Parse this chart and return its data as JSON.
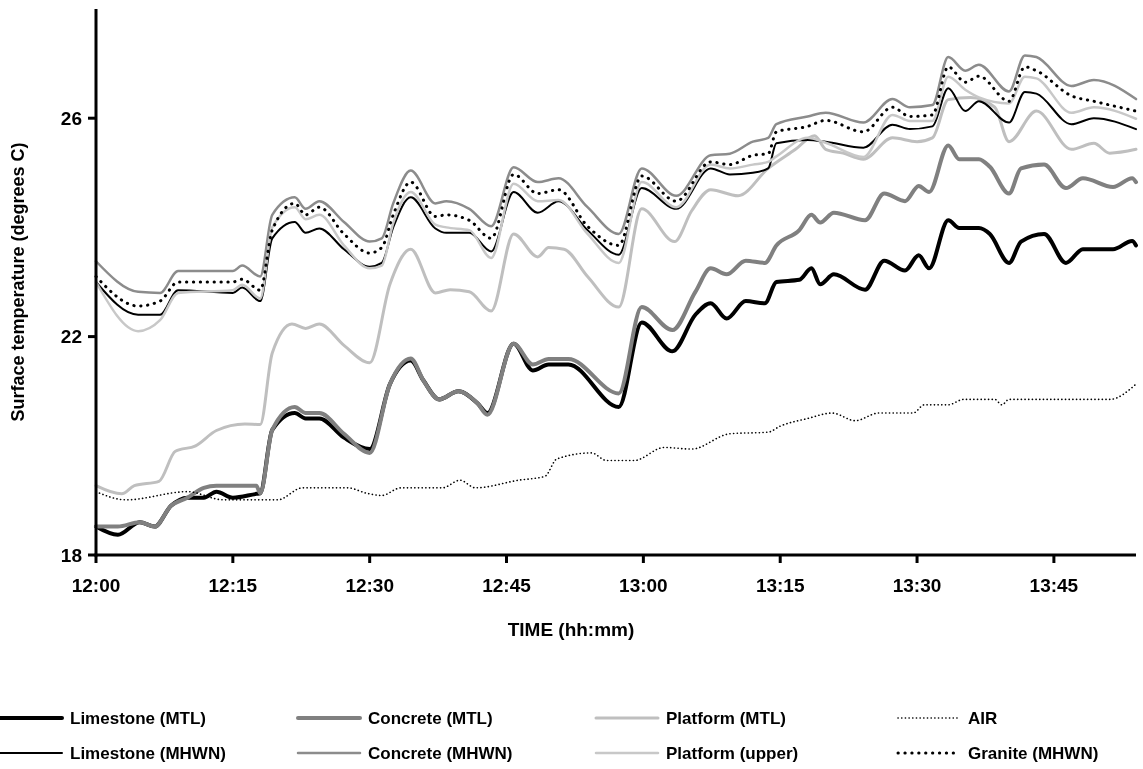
{
  "chart_data": {
    "type": "line",
    "xlabel": "TIME (hh:mm)",
    "ylabel": "Surface temperature (degrees C)",
    "xlim": [
      12,
      13.9
    ],
    "ylim": [
      18,
      28
    ],
    "xticks": [
      {
        "value": 12,
        "label": "12:00"
      },
      {
        "value": 12.25,
        "label": "12:15"
      },
      {
        "value": 12.5,
        "label": "12:30"
      },
      {
        "value": 12.75,
        "label": "12:45"
      },
      {
        "value": 13,
        "label": "13:00"
      },
      {
        "value": 13.25,
        "label": "13:15"
      },
      {
        "value": 13.5,
        "label": "13:30"
      },
      {
        "value": 13.75,
        "label": "13:45"
      }
    ],
    "yticks": [
      18,
      22,
      26
    ],
    "grid": false,
    "legend": "bottom",
    "marker": "none",
    "x": [
      12,
      12.077,
      12.117,
      12.15,
      12.25,
      12.267,
      12.3,
      12.322,
      12.363,
      12.383,
      12.408,
      12.453,
      12.5,
      12.522,
      12.543,
      12.575,
      12.62,
      12.64,
      12.682,
      12.722,
      12.763,
      12.807,
      12.845,
      12.898,
      12.955,
      12.997,
      13.06,
      13.123,
      13.158,
      13.2,
      13.228,
      13.243,
      13.3,
      13.333,
      13.402,
      13.455,
      13.487,
      13.528,
      13.557,
      13.588,
      13.613,
      13.668,
      13.697,
      13.718,
      13.782,
      13.823,
      13.9
    ],
    "series": [
      {
        "name": "Limestone (MTL)",
        "color": "#000000",
        "line_style": "solid",
        "x": [
          12,
          12.04,
          12.08,
          12.107,
          12.137,
          12.167,
          12.197,
          12.22,
          12.25,
          12.293,
          12.3,
          12.322,
          12.363,
          12.383,
          12.408,
          12.453,
          12.5,
          12.537,
          12.575,
          12.598,
          12.627,
          12.662,
          12.697,
          12.715,
          12.763,
          12.798,
          12.827,
          12.863,
          12.955,
          12.997,
          13.053,
          13.095,
          13.123,
          13.152,
          13.187,
          13.222,
          13.243,
          13.285,
          13.307,
          13.323,
          13.348,
          13.405,
          13.44,
          13.478,
          13.503,
          13.522,
          13.557,
          13.577,
          13.613,
          13.633,
          13.668,
          13.69,
          13.732,
          13.772,
          13.803,
          13.858,
          13.893,
          13.9
        ],
        "values": [
          18.52,
          18.37,
          18.6,
          18.52,
          18.9,
          19.05,
          19.05,
          19.16,
          19.05,
          19.12,
          19.13,
          20.29,
          20.6,
          20.5,
          20.5,
          20.15,
          19.94,
          21.13,
          21.56,
          21.2,
          20.85,
          21.0,
          20.78,
          20.6,
          21.87,
          21.38,
          21.49,
          21.49,
          20.71,
          22.26,
          21.73,
          22.4,
          22.61,
          22.33,
          22.65,
          22.61,
          23.0,
          23.04,
          23.25,
          22.96,
          23.14,
          22.86,
          23.39,
          23.21,
          23.49,
          23.25,
          24.13,
          23.99,
          23.99,
          23.88,
          23.35,
          23.74,
          23.88,
          23.35,
          23.6,
          23.6,
          23.75,
          23.67
        ]
      },
      {
        "name": "Concrete (MTL)",
        "color": "#808080",
        "line_style": "solid",
        "x": [
          12,
          12.04,
          12.08,
          12.107,
          12.137,
          12.167,
          12.197,
          12.22,
          12.25,
          12.293,
          12.3,
          12.322,
          12.363,
          12.383,
          12.408,
          12.453,
          12.5,
          12.537,
          12.575,
          12.598,
          12.627,
          12.662,
          12.697,
          12.715,
          12.763,
          12.798,
          12.827,
          12.863,
          12.955,
          12.997,
          13.053,
          13.095,
          13.123,
          13.152,
          13.187,
          13.222,
          13.243,
          13.285,
          13.307,
          13.323,
          13.348,
          13.405,
          13.44,
          13.478,
          13.503,
          13.522,
          13.557,
          13.577,
          13.613,
          13.633,
          13.668,
          13.69,
          13.732,
          13.772,
          13.803,
          13.858,
          13.893,
          13.9
        ],
        "values": [
          18.52,
          18.52,
          18.6,
          18.52,
          18.9,
          19.05,
          19.23,
          19.27,
          19.27,
          19.27,
          19.13,
          20.29,
          20.71,
          20.6,
          20.6,
          20.22,
          19.87,
          21.13,
          21.6,
          21.2,
          20.85,
          21.0,
          20.78,
          20.57,
          21.87,
          21.49,
          21.59,
          21.59,
          20.96,
          22.54,
          22.12,
          22.82,
          23.25,
          23.14,
          23.39,
          23.35,
          23.67,
          23.95,
          24.23,
          24.09,
          24.27,
          24.13,
          24.62,
          24.48,
          24.76,
          24.65,
          25.5,
          25.25,
          25.25,
          25.11,
          24.62,
          25.08,
          25.15,
          24.72,
          24.9,
          24.74,
          24.9,
          24.83
        ]
      },
      {
        "name": "Platform (MTL)",
        "color": "#bfbfbf",
        "line_style": "solid",
        "x": [
          12,
          12.047,
          12.07,
          12.115,
          12.145,
          12.182,
          12.22,
          12.272,
          12.3,
          12.322,
          12.358,
          12.383,
          12.408,
          12.453,
          12.5,
          12.537,
          12.575,
          12.62,
          12.647,
          12.682,
          12.722,
          12.763,
          12.807,
          12.827,
          12.855,
          12.898,
          12.955,
          12.997,
          13.057,
          13.088,
          13.123,
          13.173,
          13.228,
          13.278,
          13.313,
          13.333,
          13.365,
          13.402,
          13.455,
          13.5,
          13.528,
          13.557,
          13.598,
          13.642,
          13.668,
          13.718,
          13.782,
          13.823,
          13.852,
          13.9
        ],
        "values": [
          19.27,
          19.12,
          19.27,
          19.35,
          19.9,
          20.0,
          20.28,
          20.4,
          20.39,
          21.7,
          22.23,
          22.15,
          22.23,
          21.84,
          21.52,
          22.96,
          23.6,
          22.8,
          22.86,
          22.82,
          22.47,
          23.88,
          23.46,
          23.63,
          23.6,
          23.1,
          22.54,
          24.34,
          23.74,
          24.3,
          24.69,
          24.58,
          25.08,
          25.43,
          25.68,
          25.43,
          25.36,
          25.25,
          25.64,
          25.57,
          25.64,
          26.34,
          26.38,
          26.2,
          25.57,
          26.13,
          25.43,
          25.54,
          25.36,
          25.43
        ]
      },
      {
        "name": "AIR",
        "color": "#000000",
        "line_style": "dotted",
        "x": [
          12,
          12.055,
          12.167,
          12.233,
          12.332,
          12.377,
          12.46,
          12.495,
          12.522,
          12.557,
          12.633,
          12.665,
          12.693,
          12.772,
          12.82,
          12.842,
          12.905,
          12.933,
          12.983,
          13.038,
          13.088,
          13.158,
          13.228,
          13.25,
          13.3,
          13.345,
          13.387,
          13.43,
          13.493,
          13.513,
          13.557,
          13.585,
          13.642,
          13.655,
          13.668,
          13.852,
          13.9
        ],
        "values": [
          19.16,
          19.01,
          19.16,
          19.01,
          19.01,
          19.23,
          19.23,
          19.13,
          19.09,
          19.23,
          19.23,
          19.37,
          19.23,
          19.37,
          19.44,
          19.76,
          19.87,
          19.73,
          19.73,
          19.97,
          19.94,
          20.22,
          20.25,
          20.36,
          20.5,
          20.6,
          20.46,
          20.6,
          20.6,
          20.75,
          20.75,
          20.85,
          20.85,
          20.75,
          20.85,
          20.85,
          21.13
        ]
      },
      {
        "name": "Limestone (MHWN)",
        "color": "#000000",
        "line_style": "solid",
        "values": [
          23.0,
          22.4,
          22.4,
          22.85,
          22.8,
          22.9,
          22.65,
          23.8,
          24.1,
          23.9,
          23.98,
          23.6,
          23.28,
          23.35,
          24.0,
          24.55,
          23.98,
          23.9,
          23.9,
          23.56,
          24.65,
          24.27,
          24.48,
          23.95,
          23.5,
          24.72,
          24.34,
          25.08,
          24.97,
          25.0,
          25.08,
          25.54,
          25.6,
          25.57,
          25.46,
          25.88,
          25.8,
          25.85,
          26.55,
          26.13,
          26.31,
          25.92,
          26.48,
          26.45,
          25.89,
          26.0,
          25.8
        ]
      },
      {
        "name": "Concrete (MHWN)",
        "color": "#8c8c8c",
        "line_style": "solid",
        "values": [
          23.38,
          22.82,
          22.8,
          23.2,
          23.2,
          23.3,
          23.1,
          24.23,
          24.55,
          24.34,
          24.48,
          24.1,
          23.74,
          23.8,
          24.44,
          25.04,
          24.44,
          24.48,
          24.34,
          24.02,
          25.1,
          24.83,
          24.9,
          24.37,
          23.88,
          25.08,
          24.58,
          25.32,
          25.35,
          25.57,
          25.64,
          25.89,
          26.03,
          26.1,
          25.92,
          26.35,
          26.2,
          26.24,
          27.12,
          26.87,
          26.98,
          26.49,
          27.15,
          27.12,
          26.59,
          26.7,
          26.35
        ]
      },
      {
        "name": "Platform (upper)",
        "color": "#c8c8c8",
        "line_style": "solid",
        "values": [
          23.0,
          22.1,
          22.3,
          22.8,
          22.85,
          22.95,
          22.7,
          24.0,
          24.37,
          24.15,
          24.23,
          23.67,
          23.25,
          23.3,
          24.08,
          24.65,
          24.05,
          24.0,
          23.95,
          23.44,
          24.8,
          24.48,
          24.5,
          23.88,
          23.35,
          24.83,
          24.37,
          25.15,
          25.08,
          25.15,
          25.2,
          25.3,
          25.64,
          25.55,
          25.29,
          26.06,
          25.95,
          25.95,
          26.76,
          26.52,
          26.38,
          26.27,
          26.76,
          26.73,
          26.1,
          26.2,
          25.99
        ]
      },
      {
        "name": "Granite (MHWN)",
        "color": "#000000",
        "line_style": "dotted",
        "values": [
          23.1,
          22.56,
          22.65,
          23.0,
          23.0,
          23.05,
          22.85,
          23.95,
          24.44,
          24.23,
          24.37,
          23.88,
          23.53,
          23.63,
          24.23,
          24.83,
          24.2,
          24.23,
          24.13,
          23.8,
          24.97,
          24.62,
          24.69,
          24.02,
          23.67,
          24.94,
          24.48,
          25.2,
          25.15,
          25.32,
          25.35,
          25.75,
          25.85,
          25.96,
          25.75,
          26.2,
          26.03,
          26.06,
          26.94,
          26.66,
          26.77,
          26.31,
          26.94,
          26.87,
          26.41,
          26.31,
          26.13
        ]
      }
    ]
  }
}
